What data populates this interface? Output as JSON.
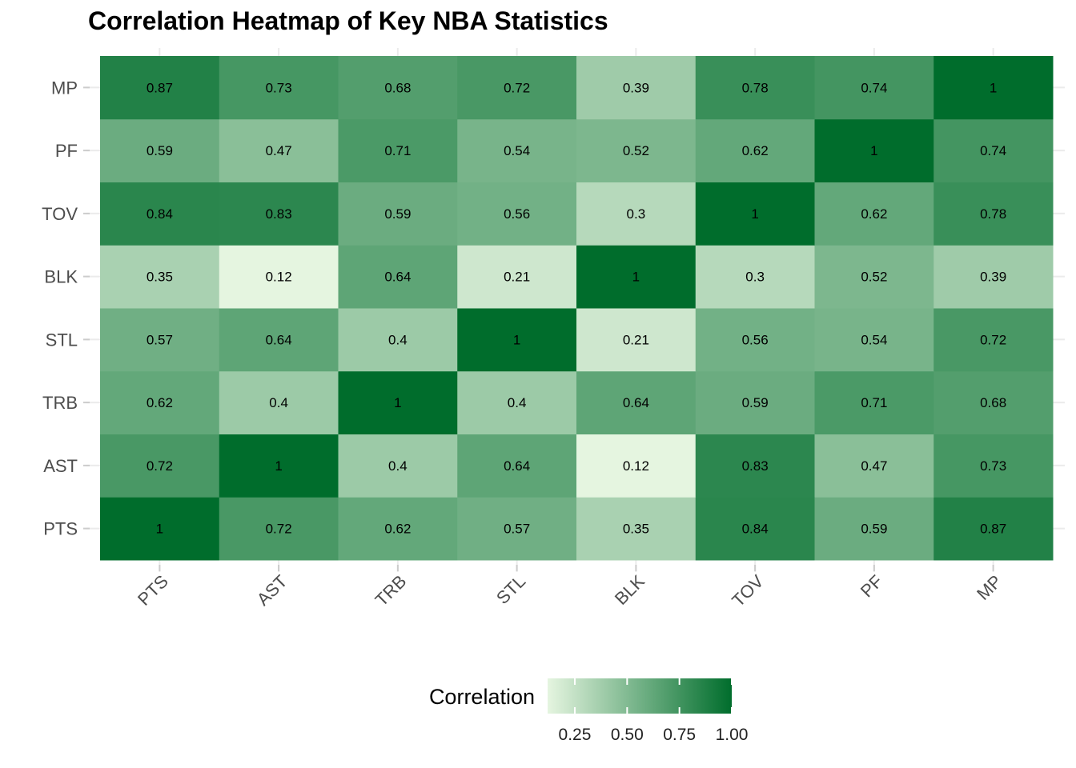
{
  "chart_data": {
    "type": "heatmap",
    "title": "Correlation Heatmap of Key NBA Statistics",
    "x_categories": [
      "PTS",
      "AST",
      "TRB",
      "STL",
      "BLK",
      "TOV",
      "PF",
      "MP"
    ],
    "y_categories": [
      "PTS",
      "AST",
      "TRB",
      "STL",
      "BLK",
      "TOV",
      "PF",
      "MP"
    ],
    "values": [
      [
        1,
        0.72,
        0.62,
        0.57,
        0.35,
        0.84,
        0.59,
        0.87
      ],
      [
        0.72,
        1,
        0.4,
        0.64,
        0.12,
        0.83,
        0.47,
        0.73
      ],
      [
        0.62,
        0.4,
        1,
        0.4,
        0.64,
        0.59,
        0.71,
        0.68
      ],
      [
        0.57,
        0.64,
        0.4,
        1,
        0.21,
        0.56,
        0.54,
        0.72
      ],
      [
        0.35,
        0.12,
        0.64,
        0.21,
        1,
        0.3,
        0.52,
        0.39
      ],
      [
        0.84,
        0.83,
        0.59,
        0.56,
        0.3,
        1,
        0.62,
        0.78
      ],
      [
        0.59,
        0.47,
        0.71,
        0.54,
        0.52,
        0.62,
        1,
        0.74
      ],
      [
        0.87,
        0.73,
        0.68,
        0.72,
        0.39,
        0.78,
        0.74,
        1
      ]
    ],
    "color_low": "#e5f5e0",
    "color_high": "#006d2c",
    "value_range": [
      0.12,
      1
    ],
    "legend": {
      "title": "Correlation",
      "position": "bottom",
      "ticks": [
        0.25,
        0.5,
        0.75,
        1.0
      ],
      "tick_labels": [
        "0.25",
        "0.50",
        "0.75",
        "1.00"
      ]
    },
    "grid": true
  }
}
